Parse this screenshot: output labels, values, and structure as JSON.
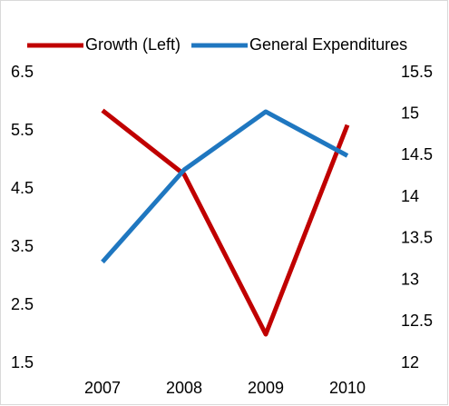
{
  "chart_data": {
    "type": "line",
    "categories": [
      "2007",
      "2008",
      "2009",
      "2010"
    ],
    "series": [
      {
        "name": "Growth (Left)",
        "color": "#c00000",
        "values": [
          5.85,
          4.75,
          2.0,
          5.6
        ]
      },
      {
        "name": "General Expenditures",
        "color": "#1f77c0",
        "axis": "y2",
        "values": [
          13.22,
          14.33,
          15.03,
          14.5
        ]
      }
    ],
    "ylim": [
      1.5,
      6.5
    ],
    "yticks": [
      1.5,
      2.5,
      3.5,
      4.5,
      5.5,
      6.5
    ],
    "y2lim": [
      12,
      15.5
    ],
    "y2ticks": [
      12,
      12.5,
      13,
      13.5,
      14,
      14.5,
      15,
      15.5
    ],
    "grid": false,
    "legend": "top"
  }
}
